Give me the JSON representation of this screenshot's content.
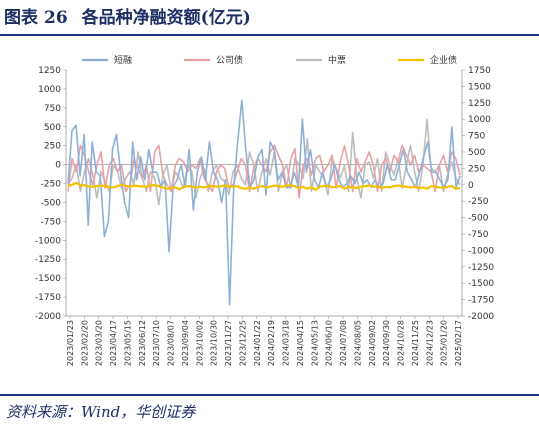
{
  "figure": {
    "label": "图表",
    "number": "26",
    "title": "各品种净融资额(亿元)",
    "source": "资料来源：Wind，华创证券"
  },
  "chart_data": {
    "type": "line",
    "left_axis": {
      "min": -2000,
      "max": 1250,
      "step": 250
    },
    "right_axis": {
      "min": -2000,
      "max": 1750,
      "step": 250
    },
    "x_tick_labels": [
      "2023/01/23",
      "2023/02/20",
      "2023/03/20",
      "2023/04/17",
      "2023/05/15",
      "2023/06/12",
      "2023/07/10",
      "2023/08/07",
      "2023/09/04",
      "2023/10/02",
      "2023/10/30",
      "2023/11/27",
      "2023/12/25",
      "2024/01/22",
      "2024/02/19",
      "2024/03/18",
      "2024/04/15",
      "2024/05/13",
      "2024/06/10",
      "2024/07/08",
      "2024/08/05",
      "2024/09/02",
      "2024/09/30",
      "2024/10/28",
      "2024/11/25",
      "2024/12/23",
      "2025/01/20",
      "2025/02/17"
    ],
    "legend_position": "top",
    "grid": false,
    "series": [
      {
        "name": "短融",
        "color": "#8fb0d6",
        "axis": "left",
        "values": [
          -250,
          450,
          520,
          -150,
          400,
          -800,
          300,
          -100,
          -150,
          -950,
          -750,
          200,
          400,
          -100,
          -500,
          -700,
          300,
          -200,
          100,
          -200,
          200,
          -100,
          -100,
          -300,
          -200,
          -1150,
          -300,
          -200,
          0,
          -300,
          200,
          -600,
          -100,
          100,
          -200,
          300,
          -100,
          -200,
          -500,
          -200,
          -1850,
          -300,
          300,
          850,
          200,
          -300,
          -200,
          100,
          200,
          -400,
          300,
          200,
          -200,
          -100,
          -300,
          -300,
          -100,
          -300,
          600,
          -100,
          200,
          -200,
          -300,
          -100,
          -300,
          -200,
          0,
          -200,
          -300,
          -250,
          -150,
          -250,
          -100,
          -250,
          -200,
          -300,
          -200,
          -300,
          -250,
          0,
          -200,
          -200,
          0,
          200,
          -100,
          -200,
          -300,
          -100,
          100,
          300,
          -100,
          -100,
          -200,
          -300,
          -200,
          500,
          -300,
          -150
        ]
      },
      {
        "name": "公司债",
        "color": "#e8a0a4",
        "axis": "right",
        "values": [
          -100,
          400,
          200,
          600,
          450,
          200,
          0,
          300,
          500,
          -50,
          300,
          400,
          200,
          300,
          -100,
          0,
          400,
          250,
          100,
          300,
          -100,
          500,
          600,
          150,
          0,
          -100,
          300,
          400,
          350,
          200,
          300,
          250,
          400,
          100,
          0,
          -100,
          200,
          300,
          250,
          -50,
          0,
          200,
          400,
          300,
          -100,
          250,
          400,
          300,
          200,
          500,
          600,
          450,
          300,
          -50,
          400,
          550,
          -200,
          300,
          400,
          150,
          400,
          450,
          200,
          300,
          450,
          -50,
          350,
          600,
          300,
          -100,
          400,
          200,
          350,
          500,
          300,
          -100,
          300,
          400,
          200,
          450,
          350,
          600,
          450,
          300,
          450,
          200,
          300,
          250,
          200,
          -100,
          300,
          450,
          200,
          500,
          400,
          150
        ]
      },
      {
        "name": "中票",
        "color": "#bdbdbd",
        "axis": "right",
        "values": [
          0,
          100,
          300,
          -100,
          200,
          400,
          150,
          -200,
          200,
          50,
          -100,
          300,
          200,
          -50,
          100,
          200,
          0,
          500,
          100,
          -100,
          200,
          100,
          -300,
          150,
          300,
          -100,
          200,
          100,
          -50,
          300,
          200,
          -200,
          100,
          250,
          -100,
          200,
          300,
          100,
          50,
          -150,
          200,
          300,
          100,
          0,
          500,
          300,
          -100,
          200,
          400,
          150,
          500,
          -100,
          200,
          300,
          -50,
          400,
          300,
          100,
          700,
          -100,
          300,
          200,
          100,
          -150,
          400,
          250,
          100,
          300,
          -100,
          800,
          100,
          -200,
          300,
          350,
          100,
          400,
          -100,
          500,
          300,
          150,
          400,
          -50,
          300,
          600,
          200,
          -100,
          300,
          1000,
          250,
          200,
          300,
          -100,
          150,
          350,
          100,
          0
        ]
      },
      {
        "name": "企业债",
        "color": "#f2c200",
        "axis": "right",
        "values": [
          -20,
          0,
          30,
          -10,
          -5,
          -25,
          -30,
          -20,
          -10,
          -15,
          -35,
          -40,
          -20,
          -5,
          -15,
          -30,
          -10,
          -20,
          -25,
          -30,
          -10,
          -5,
          -20,
          -40,
          -60,
          -50,
          -40,
          -70,
          -30,
          -20,
          -25,
          -50,
          -30,
          -40,
          -25,
          -15,
          -30,
          -20,
          -10,
          -25,
          -30,
          -20,
          -50,
          -60,
          -40,
          -60,
          -30,
          -20,
          -40,
          -30,
          -10,
          -20,
          -30,
          -5,
          -10,
          -20,
          -50,
          -30,
          -60,
          -40,
          -80,
          -30,
          -20,
          -10,
          -40,
          -30,
          -20,
          -60,
          -30,
          -40,
          -50,
          -30,
          -20,
          -10,
          -30,
          -20,
          -50,
          -30,
          -40,
          -20,
          -10,
          -20,
          -30,
          -40,
          -30,
          -50,
          -40,
          -60,
          -20,
          -30,
          -40,
          -50,
          -30,
          -20,
          -60,
          -50
        ]
      }
    ]
  }
}
